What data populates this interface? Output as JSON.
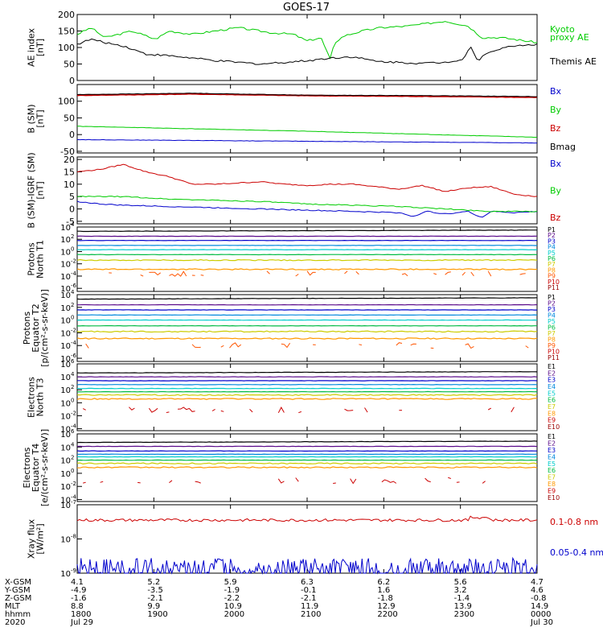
{
  "title": "GOES-17",
  "chart_data": {
    "type": "line",
    "time_range": [
      "2020 Jul 29 18:00",
      "2020 Jul 30 00:00"
    ],
    "panels": [
      {
        "id": "ae",
        "ylabel": "AE index\n[nT]",
        "scale": "linear",
        "ylim": [
          0,
          200
        ],
        "yticks": [
          0,
          50,
          100,
          150,
          200
        ],
        "ytick_labels": [
          "0",
          "50",
          "100",
          "150",
          "200"
        ],
        "legend": [
          {
            "label": "Kyoto",
            "color": "#00cc00"
          },
          {
            "label": "proxy AE",
            "color": "#00cc00"
          },
          {
            "label": "Themis AE",
            "color": "#000000"
          }
        ],
        "series": [
          {
            "name": "Kyoto proxy AE",
            "color": "#00cc00",
            "t": [
              0,
              0.03,
              0.06,
              0.12,
              0.17,
              0.2,
              0.25,
              0.3,
              0.35,
              0.42,
              0.47,
              0.5,
              0.53,
              0.55,
              0.56,
              0.58,
              0.62,
              0.66,
              0.72,
              0.8,
              0.85,
              0.88,
              0.92,
              0.95,
              1
            ],
            "v": [
              140,
              160,
              130,
              150,
              125,
              150,
              140,
              150,
              160,
              145,
              140,
              120,
              130,
              65,
              115,
              135,
              150,
              160,
              165,
              180,
              165,
              130,
              130,
              125,
              115
            ]
          },
          {
            "name": "Themis AE",
            "color": "#000000",
            "t": [
              0,
              0.03,
              0.06,
              0.1,
              0.15,
              0.2,
              0.25,
              0.3,
              0.35,
              0.4,
              0.45,
              0.5,
              0.55,
              0.6,
              0.65,
              0.7,
              0.75,
              0.8,
              0.84,
              0.855,
              0.87,
              0.9,
              0.95,
              1
            ],
            "v": [
              110,
              125,
              115,
              105,
              80,
              75,
              68,
              60,
              55,
              50,
              55,
              60,
              68,
              72,
              58,
              55,
              52,
              55,
              65,
              105,
              60,
              90,
              105,
              110
            ]
          }
        ]
      },
      {
        "id": "b",
        "ylabel": "B (SM)\n[nT]",
        "scale": "linear",
        "ylim": [
          -55,
          150
        ],
        "yticks": [
          -50,
          0,
          50,
          100
        ],
        "ytick_labels": [
          "-50",
          "0",
          "50",
          "100"
        ],
        "legend": [
          {
            "label": "Bx",
            "color": "#0000cc"
          },
          {
            "label": "By",
            "color": "#00cc00"
          },
          {
            "label": "Bz",
            "color": "#cc0000"
          },
          {
            "label": "Bmag",
            "color": "#000000"
          }
        ],
        "series": [
          {
            "name": "Bx",
            "color": "#0000cc",
            "t": [
              0,
              0.5,
              1
            ],
            "v": [
              -15,
              -20,
              -25
            ]
          },
          {
            "name": "By",
            "color": "#00cc00",
            "t": [
              0,
              0.5,
              1
            ],
            "v": [
              25,
              10,
              -8
            ]
          },
          {
            "name": "Bz",
            "color": "#cc0000",
            "t": [
              0,
              0.25,
              0.5,
              0.75,
              1
            ],
            "v": [
              118,
              122,
              117,
              115,
              112
            ]
          },
          {
            "name": "Bmag",
            "color": "#000000",
            "t": [
              0,
              0.25,
              0.5,
              0.75,
              1
            ],
            "v": [
              120,
              124,
              118,
              117,
              114
            ]
          }
        ]
      },
      {
        "id": "bdiff",
        "ylabel": "B (SM)-IGRF (SM)\n[nT]",
        "scale": "linear",
        "ylim": [
          -6,
          21
        ],
        "yticks": [
          -5,
          0,
          5,
          10,
          15,
          20
        ],
        "ytick_labels": [
          "-5",
          "0",
          "5",
          "10",
          "15",
          "20"
        ],
        "legend": [
          {
            "label": "Bx",
            "color": "#0000cc"
          },
          {
            "label": "By",
            "color": "#00cc00"
          },
          {
            "label": "Bz",
            "color": "#cc0000"
          }
        ],
        "series": [
          {
            "name": "Bx",
            "color": "#0000cc",
            "t": [
              0,
              0.05,
              0.1,
              0.2,
              0.3,
              0.4,
              0.5,
              0.6,
              0.7,
              0.73,
              0.76,
              0.8,
              0.85,
              0.88,
              0.9,
              0.95,
              1
            ],
            "v": [
              3,
              2,
              1.5,
              1,
              0.5,
              0,
              -0.5,
              -1,
              -1.5,
              -3,
              -1,
              -2,
              -1,
              -3.5,
              -1,
              -1.5,
              -1
            ]
          },
          {
            "name": "By",
            "color": "#00cc00",
            "t": [
              0,
              0.1,
              0.2,
              0.3,
              0.4,
              0.5,
              0.6,
              0.7,
              0.8,
              0.9,
              1
            ],
            "v": [
              5,
              5,
              4,
              3.5,
              3,
              2,
              1.5,
              1,
              0,
              -1,
              -1
            ]
          },
          {
            "name": "Bz",
            "color": "#cc0000",
            "t": [
              0,
              0.05,
              0.1,
              0.15,
              0.2,
              0.25,
              0.3,
              0.35,
              0.4,
              0.45,
              0.5,
              0.55,
              0.6,
              0.65,
              0.7,
              0.75,
              0.8,
              0.85,
              0.9,
              0.95,
              1
            ],
            "v": [
              15,
              16,
              18,
              15,
              13,
              10,
              10,
              10.5,
              11,
              10,
              9.5,
              10,
              10,
              9,
              8,
              9.5,
              7,
              8.5,
              9,
              6,
              5
            ]
          }
        ]
      },
      {
        "id": "p_t1",
        "ylabel": "Protons\nNorth T1",
        "scale": "log",
        "ylim_exp": [
          -6.5,
          4
        ],
        "ytick_exps": [
          4,
          2,
          0,
          -2,
          -4,
          -6
        ],
        "legend": [
          {
            "label": "P1",
            "color": "#000000"
          },
          {
            "label": "P2",
            "color": "#5a0a8a"
          },
          {
            "label": "P3",
            "color": "#0000cc"
          },
          {
            "label": "P4",
            "color": "#0088dd"
          },
          {
            "label": "P5",
            "color": "#00cccc"
          },
          {
            "label": "P6",
            "color": "#00bb44"
          },
          {
            "label": "P7",
            "color": "#cccc00"
          },
          {
            "label": "P8",
            "color": "#ff9900"
          },
          {
            "label": "P9",
            "color": "#ff5500"
          },
          {
            "label": "P10",
            "color": "#cc0000"
          },
          {
            "label": "P11",
            "color": "#990000"
          }
        ],
        "levels": [
          3.3,
          2.5,
          1.8,
          1.0,
          0.3,
          -0.5,
          -1.4,
          -2.9,
          -3.6
        ]
      },
      {
        "id": "p_t2",
        "ylabel": "Protons\nEquator T2\n[p/(cm²-s-sr-keV)]",
        "scale": "log",
        "ylim_exp": [
          -6.5,
          4
        ],
        "ytick_exps": [
          4,
          2,
          0,
          -2,
          -4,
          -6
        ],
        "legend": [
          {
            "label": "P1",
            "color": "#000000"
          },
          {
            "label": "P2",
            "color": "#5a0a8a"
          },
          {
            "label": "P3",
            "color": "#0000cc"
          },
          {
            "label": "P4",
            "color": "#0088dd"
          },
          {
            "label": "P5",
            "color": "#00cccc"
          },
          {
            "label": "P6",
            "color": "#00bb44"
          },
          {
            "label": "P7",
            "color": "#cccc00"
          },
          {
            "label": "P8",
            "color": "#ff9900"
          },
          {
            "label": "P9",
            "color": "#ff5500"
          },
          {
            "label": "P10",
            "color": "#cc0000"
          },
          {
            "label": "P11",
            "color": "#990000"
          }
        ],
        "levels": [
          3.3,
          2.4,
          1.6,
          0.8,
          0.0,
          -0.9,
          -1.8,
          -2.9,
          -4.0
        ]
      },
      {
        "id": "e_t3",
        "ylabel": "Electrons\nNorth T3",
        "scale": "log",
        "ylim_exp": [
          -4.3,
          6
        ],
        "ytick_exps": [
          6,
          4,
          2,
          0,
          -2,
          -4
        ],
        "legend": [
          {
            "label": "E1",
            "color": "#000000"
          },
          {
            "label": "E2",
            "color": "#5a0a8a"
          },
          {
            "label": "E3",
            "color": "#0000cc"
          },
          {
            "label": "E4",
            "color": "#0088dd"
          },
          {
            "label": "E5",
            "color": "#00cccc"
          },
          {
            "label": "E6",
            "color": "#00bb44"
          },
          {
            "label": "E7",
            "color": "#cccc00"
          },
          {
            "label": "E8",
            "color": "#ff9900"
          },
          {
            "label": "E9",
            "color": "#cc0000"
          },
          {
            "label": "E10",
            "color": "#990000"
          }
        ],
        "levels": [
          4.6,
          4.0,
          3.4,
          2.8,
          2.2,
          1.7,
          1.2,
          0.6,
          -1.1
        ]
      },
      {
        "id": "e_t4",
        "ylabel": "Electrons\nEquator T4\n[e/(cm²-s-sr-keV)]",
        "scale": "log",
        "ylim_exp": [
          -4.3,
          6
        ],
        "ytick_exps": [
          6,
          4,
          2,
          0,
          -2,
          -4
        ],
        "legend": [
          {
            "label": "E1",
            "color": "#000000"
          },
          {
            "label": "E2",
            "color": "#5a0a8a"
          },
          {
            "label": "E3",
            "color": "#0000cc"
          },
          {
            "label": "E4",
            "color": "#0088dd"
          },
          {
            "label": "E5",
            "color": "#00cccc"
          },
          {
            "label": "E6",
            "color": "#00bb44"
          },
          {
            "label": "E7",
            "color": "#cccc00"
          },
          {
            "label": "E8",
            "color": "#ff9900"
          },
          {
            "label": "E9",
            "color": "#cc0000"
          },
          {
            "label": "E10",
            "color": "#990000"
          }
        ],
        "levels": [
          4.7,
          4.1,
          3.4,
          2.9,
          2.5,
          2.0,
          1.5,
          0.9,
          -1.1
        ]
      },
      {
        "id": "xray",
        "ylabel": "Xray flux\n[W/m²]",
        "scale": "log",
        "ylim_exp": [
          -9,
          -7
        ],
        "ytick_exps": [
          -7,
          -8,
          -9
        ],
        "legend": [
          {
            "label": "0.1-0.8 nm",
            "color": "#cc0000"
          },
          {
            "label": "0.05-0.4 nm",
            "color": "#0000cc"
          }
        ],
        "series_log": [
          {
            "name": "0.1-0.8 nm",
            "color": "#cc0000",
            "base": -7.45
          },
          {
            "name": "0.05-0.4 nm",
            "color": "#0000cc",
            "base": -8.8
          }
        ]
      }
    ],
    "ephemeris": {
      "row_labels": [
        "X-GSM",
        "Y-GSM",
        "Z-GSM",
        "MLT",
        "hhmm",
        "2020"
      ],
      "columns": [
        [
          "4.1",
          "-4.9",
          "-1.6",
          "8.8",
          "1800",
          "Jul 29"
        ],
        [
          "5.2",
          "-3.5",
          "-2.1",
          "9.9",
          "1900",
          ""
        ],
        [
          "5.9",
          "-1.9",
          "-2.2",
          "10.9",
          "2000",
          ""
        ],
        [
          "6.3",
          "-0.1",
          "-2.1",
          "11.9",
          "2100",
          ""
        ],
        [
          "6.2",
          "1.6",
          "-1.8",
          "12.9",
          "2200",
          ""
        ],
        [
          "5.6",
          "3.2",
          "-1.4",
          "13.9",
          "2300",
          ""
        ],
        [
          "4.7",
          "4.6",
          "-0.8",
          "14.9",
          "0000",
          "Jul 30"
        ]
      ]
    }
  }
}
